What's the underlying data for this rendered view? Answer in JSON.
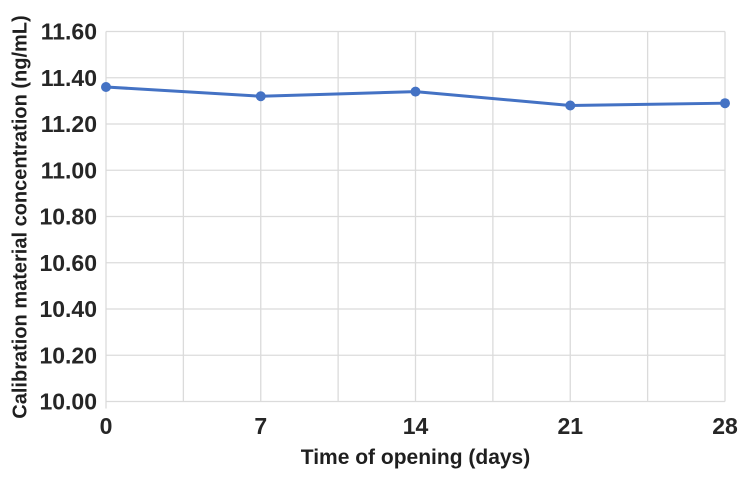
{
  "chart_data": {
    "type": "line",
    "x": [
      0,
      7,
      14,
      21,
      28
    ],
    "x_tick_labels": [
      "0",
      "7",
      "14",
      "21",
      "28"
    ],
    "y_tick_labels": [
      "11.60",
      "11.40",
      "11.20",
      "11.00",
      "10.80",
      "10.60",
      "10.40",
      "10.20",
      "10.00"
    ],
    "series": [
      {
        "name": "Calibration material concentration",
        "values": [
          11.36,
          11.32,
          11.34,
          11.28,
          11.29
        ]
      }
    ],
    "xlabel": "Time of opening (days)",
    "ylabel": "Calibration material concentration (ng/mL)",
    "xlim": [
      0,
      28
    ],
    "ylim": [
      10.0,
      11.6
    ],
    "y_major_step": 0.2,
    "x_gridline_step": 3.5,
    "grid": true,
    "legend": false,
    "marker": "circle",
    "colors": {
      "line": "#4472C4",
      "marker": "#4472C4",
      "gridline": "#DBDBDB",
      "tick_text": "#262626",
      "axis_title_text": "#1f1f1f",
      "background": "#ffffff"
    }
  }
}
